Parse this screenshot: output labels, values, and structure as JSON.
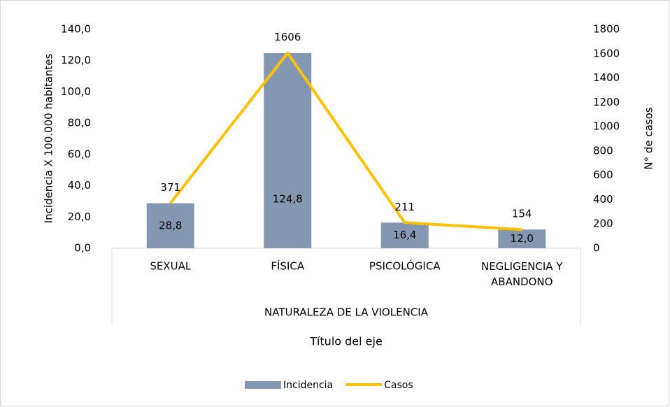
{
  "chart_data": {
    "type": "bar",
    "categories": [
      "SEXUAL",
      "FÍSICA",
      "PSICOLÓGICA",
      "NEGLIGENCIA Y ABANDONO"
    ],
    "group_label": "NATURALEZA DE LA VIOLENCIA",
    "x_title": "Título del eje",
    "y_title": "Incidencia X 100.000 habitantes",
    "y2_title": "N° de casos",
    "series": [
      {
        "name": "Incidencia",
        "type": "bar",
        "color": "#8497b0",
        "values": [
          28.8,
          124.8,
          16.4,
          12.0
        ],
        "value_labels": [
          "28,8",
          "124,8",
          "16,4",
          "12,0"
        ]
      },
      {
        "name": "Casos",
        "type": "line",
        "axis": "y2",
        "color": "#ffc000",
        "values": [
          371,
          1606,
          211,
          154
        ]
      }
    ],
    "ylim": [
      0,
      140
    ],
    "yticks": [
      {
        "value": 0,
        "label": "0,0"
      },
      {
        "value": 20,
        "label": "20,0"
      },
      {
        "value": 40,
        "label": "40,0"
      },
      {
        "value": 60,
        "label": "60,0"
      },
      {
        "value": 80,
        "label": "80,0"
      },
      {
        "value": 100,
        "label": "100,0"
      },
      {
        "value": 120,
        "label": "120,0"
      },
      {
        "value": 140,
        "label": "140,0"
      }
    ],
    "y2lim": [
      0,
      1800
    ],
    "y2ticks": [
      0,
      200,
      400,
      600,
      800,
      1000,
      1200,
      1400,
      1600,
      1800
    ],
    "legend": "bottom"
  }
}
